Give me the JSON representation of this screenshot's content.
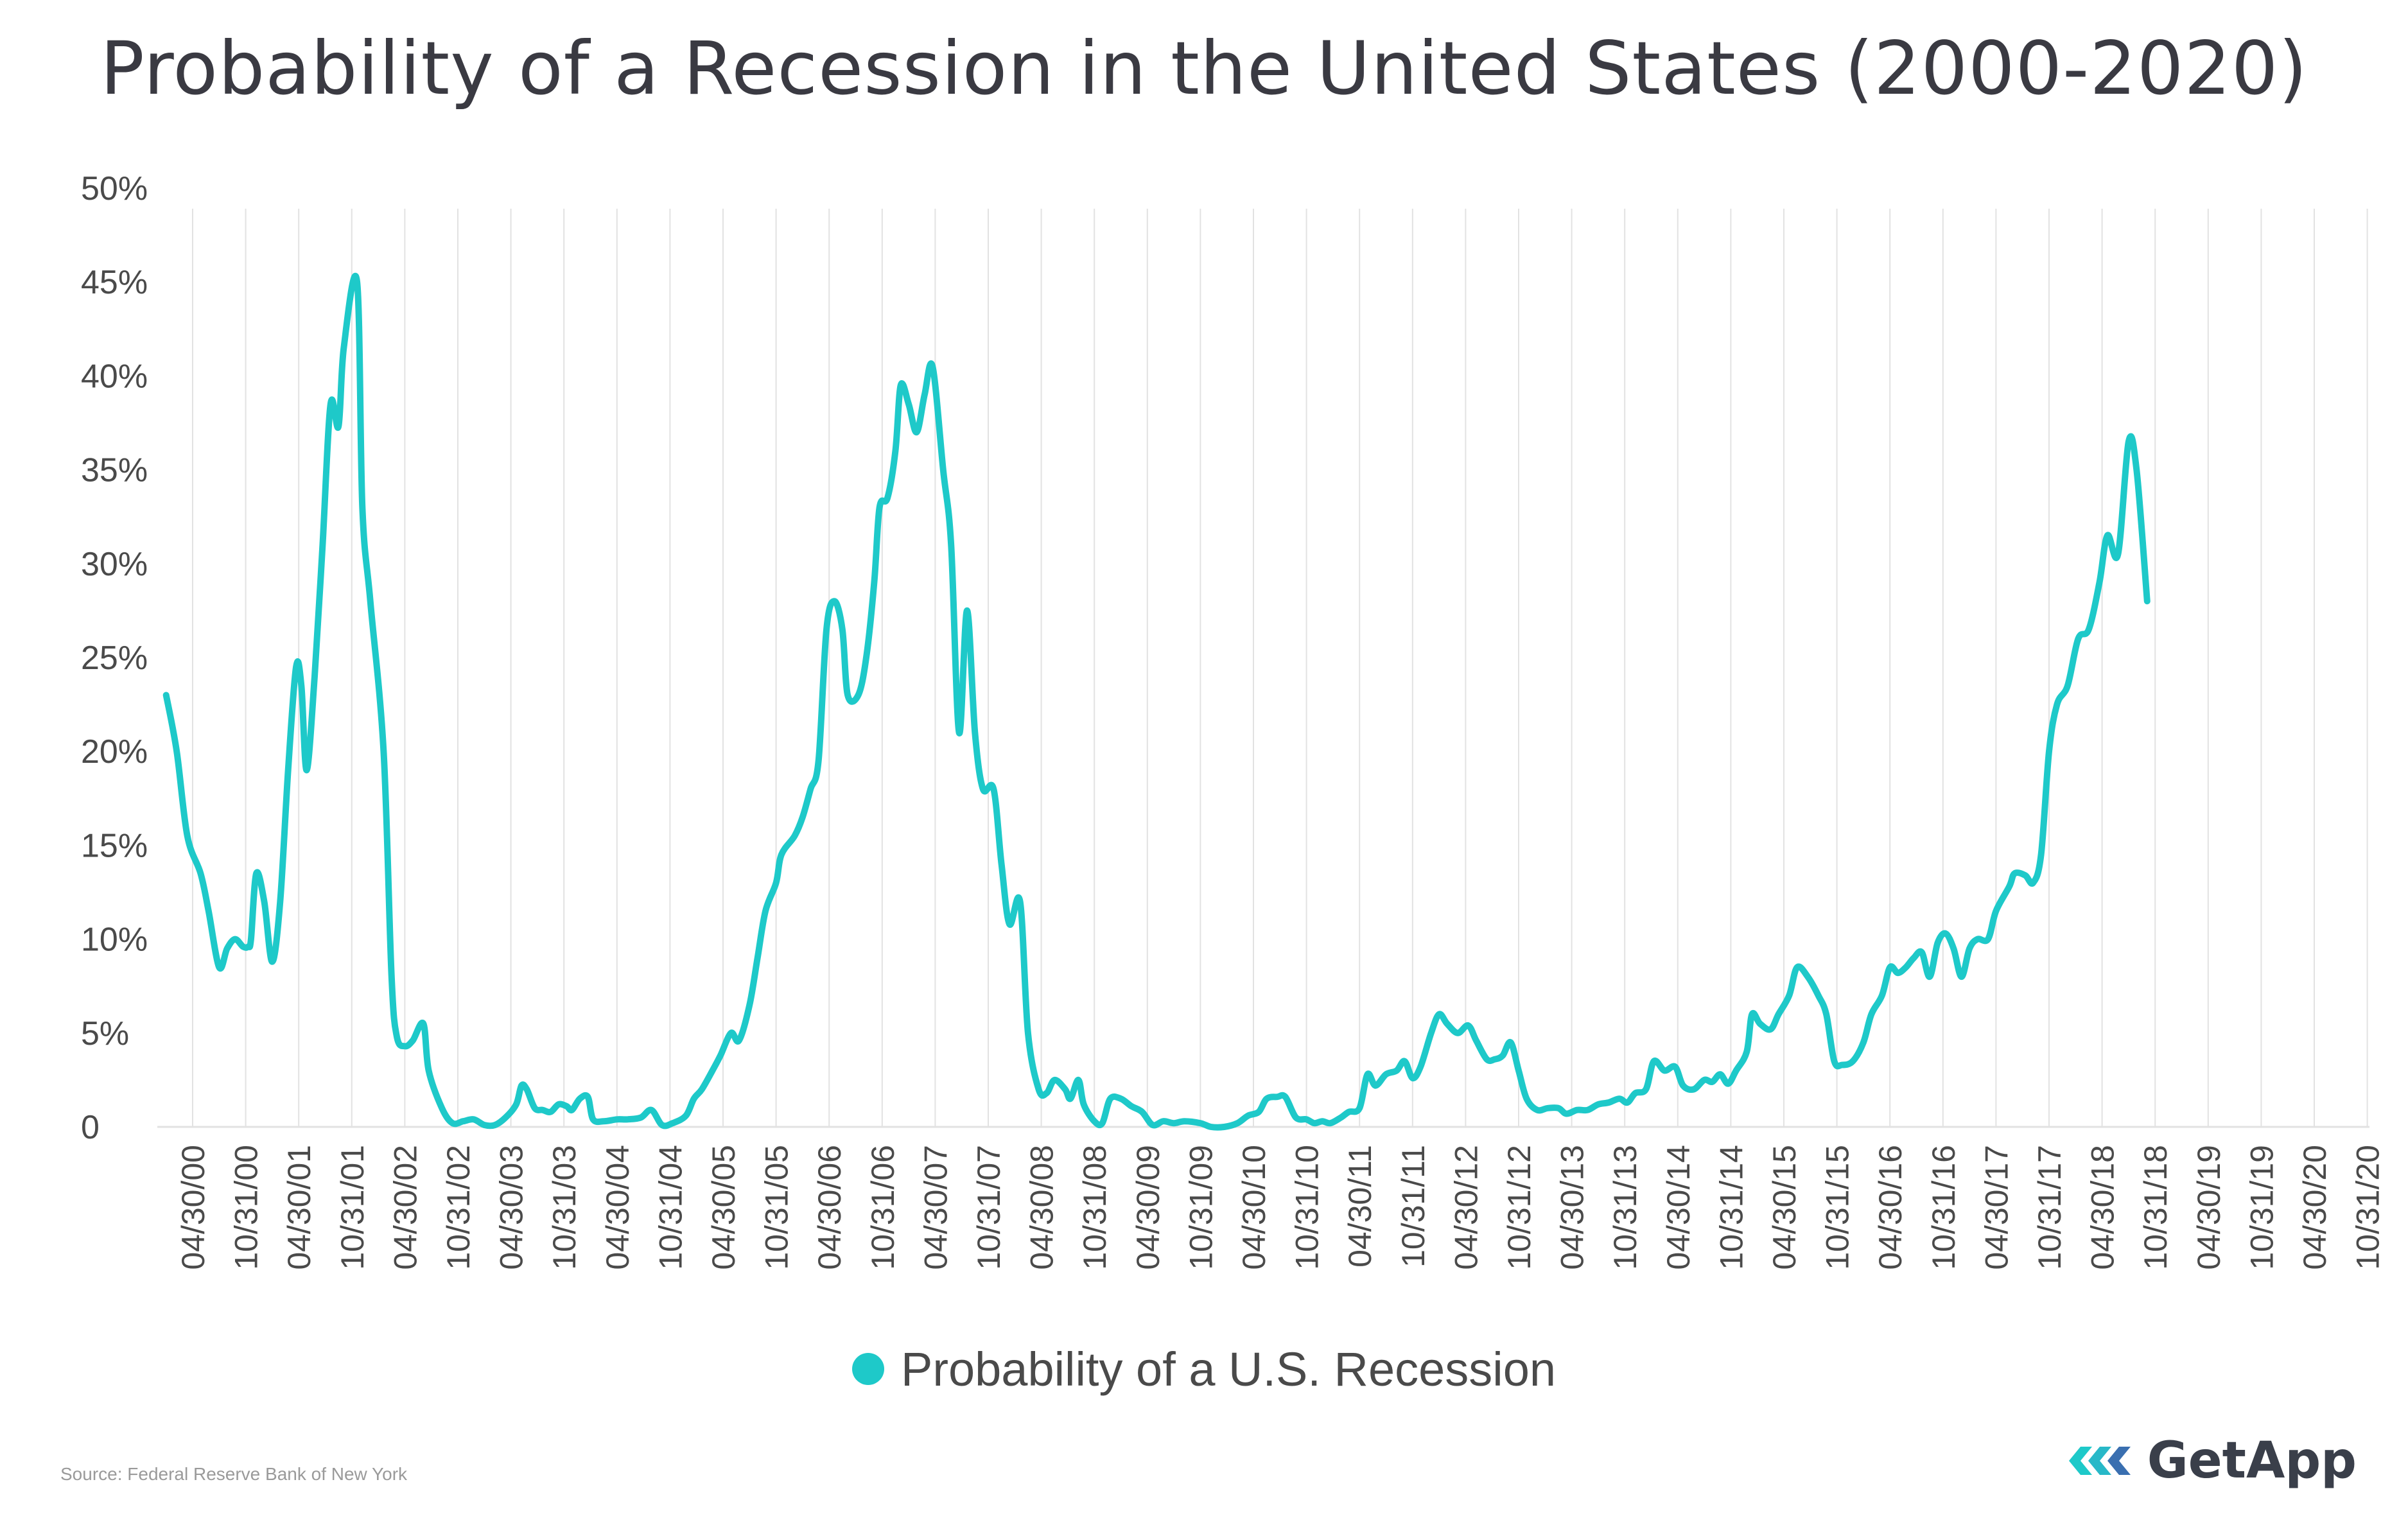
{
  "chart_data": {
    "type": "line",
    "title": "Probability of a Recession in the United States (2000-2020)",
    "xlabel": "",
    "ylabel": "",
    "ylim": [
      0,
      50
    ],
    "yticks": [
      0,
      5,
      10,
      15,
      20,
      25,
      30,
      35,
      40,
      45,
      50
    ],
    "ytick_labels": [
      "0",
      "5%",
      "10%",
      "15%",
      "20%",
      "25%",
      "30%",
      "35%",
      "40%",
      "45%",
      "50%"
    ],
    "x_tick_labels": [
      "04/30/00",
      "10/31/00",
      "04/30/01",
      "10/31/01",
      "04/30/02",
      "10/31/02",
      "04/30/03",
      "10/31/03",
      "04/30/04",
      "10/31/04",
      "04/30/05",
      "10/31/05",
      "04/30/06",
      "10/31/06",
      "04/30/07",
      "10/31/07",
      "04/30/08",
      "10/31/08",
      "04/30/09",
      "10/31/09",
      "04/30/10",
      "10/31/10",
      "04/30/11",
      "10/31/11",
      "04/30/12",
      "10/31/12",
      "04/30/13",
      "10/31/13",
      "04/30/14",
      "10/31/14",
      "04/30/15",
      "10/31/15",
      "04/30/16",
      "10/31/16",
      "04/30/17",
      "10/31/17",
      "04/30/18",
      "10/31/18",
      "04/30/19",
      "10/31/19",
      "04/30/20",
      "10/31/20"
    ],
    "x_range": [
      -0.5,
      41
    ],
    "grid": "vertical",
    "legend": "bottom-center",
    "series": [
      {
        "name": "Probability of a U.S. Recession",
        "color": "#1ec9c9",
        "points": [
          [
            -0.5,
            23.0
          ],
          [
            -0.3,
            20.0
          ],
          [
            -0.1,
            15.5
          ],
          [
            0.15,
            13.5
          ],
          [
            0.3,
            11.5
          ],
          [
            0.5,
            8.5
          ],
          [
            0.65,
            9.5
          ],
          [
            0.8,
            10.0
          ],
          [
            0.95,
            9.6
          ],
          [
            1.05,
            9.6
          ],
          [
            1.1,
            10.0
          ],
          [
            1.2,
            13.5
          ],
          [
            1.35,
            12.0
          ],
          [
            1.5,
            8.8
          ],
          [
            1.65,
            12.0
          ],
          [
            1.8,
            19.0
          ],
          [
            1.95,
            24.5
          ],
          [
            2.05,
            23.5
          ],
          [
            2.15,
            19.0
          ],
          [
            2.3,
            24.0
          ],
          [
            2.45,
            31.0
          ],
          [
            2.6,
            38.5
          ],
          [
            2.75,
            37.3
          ],
          [
            2.85,
            41.5
          ],
          [
            3.1,
            45.0
          ],
          [
            3.2,
            33.0
          ],
          [
            3.35,
            28.0
          ],
          [
            3.6,
            20.0
          ],
          [
            3.75,
            8.0
          ],
          [
            3.85,
            4.8
          ],
          [
            4.0,
            4.3
          ],
          [
            4.15,
            4.6
          ],
          [
            4.35,
            5.5
          ],
          [
            4.45,
            3.0
          ],
          [
            4.7,
            1.0
          ],
          [
            4.9,
            0.2
          ],
          [
            5.1,
            0.3
          ],
          [
            5.3,
            0.4
          ],
          [
            5.5,
            0.1
          ],
          [
            5.7,
            0.1
          ],
          [
            5.9,
            0.5
          ],
          [
            6.1,
            1.2
          ],
          [
            6.2,
            2.2
          ],
          [
            6.3,
            2.0
          ],
          [
            6.45,
            1.0
          ],
          [
            6.6,
            0.9
          ],
          [
            6.75,
            0.8
          ],
          [
            6.9,
            1.2
          ],
          [
            7.05,
            1.1
          ],
          [
            7.15,
            0.9
          ],
          [
            7.3,
            1.5
          ],
          [
            7.45,
            1.6
          ],
          [
            7.55,
            0.4
          ],
          [
            7.75,
            0.3
          ],
          [
            8.0,
            0.4
          ],
          [
            8.2,
            0.4
          ],
          [
            8.45,
            0.5
          ],
          [
            8.65,
            0.9
          ],
          [
            8.85,
            0.1
          ],
          [
            9.05,
            0.2
          ],
          [
            9.3,
            0.6
          ],
          [
            9.45,
            1.5
          ],
          [
            9.6,
            2.0
          ],
          [
            9.8,
            3.0
          ],
          [
            9.95,
            3.8
          ],
          [
            10.15,
            5.0
          ],
          [
            10.3,
            4.6
          ],
          [
            10.5,
            6.5
          ],
          [
            10.65,
            9.0
          ],
          [
            10.8,
            11.5
          ],
          [
            11.0,
            13.0
          ],
          [
            11.1,
            14.5
          ],
          [
            11.35,
            15.5
          ],
          [
            11.5,
            16.5
          ],
          [
            11.65,
            18.0
          ],
          [
            11.8,
            19.5
          ],
          [
            11.95,
            26.5
          ],
          [
            12.1,
            28.0
          ],
          [
            12.25,
            26.5
          ],
          [
            12.35,
            23.0
          ],
          [
            12.55,
            23.0
          ],
          [
            12.7,
            25.0
          ],
          [
            12.85,
            29.0
          ],
          [
            12.95,
            33.0
          ],
          [
            13.1,
            33.5
          ],
          [
            13.25,
            36.0
          ],
          [
            13.35,
            39.5
          ],
          [
            13.5,
            38.5
          ],
          [
            13.65,
            37.0
          ],
          [
            13.8,
            39.0
          ],
          [
            13.95,
            40.5
          ],
          [
            14.15,
            35.0
          ],
          [
            14.3,
            31.0
          ],
          [
            14.45,
            21.0
          ],
          [
            14.6,
            27.5
          ],
          [
            14.75,
            21.0
          ],
          [
            14.9,
            18.0
          ],
          [
            15.1,
            18.0
          ],
          [
            15.25,
            14.0
          ],
          [
            15.4,
            10.8
          ],
          [
            15.6,
            12.0
          ],
          [
            15.75,
            5.0
          ],
          [
            15.95,
            2.0
          ],
          [
            16.1,
            1.8
          ],
          [
            16.25,
            2.5
          ],
          [
            16.45,
            2.0
          ],
          [
            16.55,
            1.5
          ],
          [
            16.7,
            2.5
          ],
          [
            16.8,
            1.2
          ],
          [
            17.0,
            0.3
          ],
          [
            17.15,
            0.2
          ],
          [
            17.3,
            1.5
          ],
          [
            17.5,
            1.5
          ],
          [
            17.7,
            1.1
          ],
          [
            17.9,
            0.8
          ],
          [
            18.1,
            0.1
          ],
          [
            18.3,
            0.3
          ],
          [
            18.5,
            0.2
          ],
          [
            18.7,
            0.3
          ],
          [
            19.0,
            0.2
          ],
          [
            19.2,
            0.0
          ],
          [
            19.45,
            0.0
          ],
          [
            19.7,
            0.2
          ],
          [
            19.9,
            0.6
          ],
          [
            20.1,
            0.8
          ],
          [
            20.25,
            1.5
          ],
          [
            20.45,
            1.6
          ],
          [
            20.6,
            1.6
          ],
          [
            20.8,
            0.5
          ],
          [
            21.0,
            0.4
          ],
          [
            21.15,
            0.2
          ],
          [
            21.3,
            0.3
          ],
          [
            21.45,
            0.2
          ],
          [
            21.65,
            0.5
          ],
          [
            21.8,
            0.8
          ],
          [
            22.0,
            1.0
          ],
          [
            22.15,
            2.8
          ],
          [
            22.3,
            2.2
          ],
          [
            22.5,
            2.8
          ],
          [
            22.7,
            3.0
          ],
          [
            22.85,
            3.5
          ],
          [
            23.0,
            2.6
          ],
          [
            23.15,
            3.2
          ],
          [
            23.35,
            5.0
          ],
          [
            23.5,
            6.0
          ],
          [
            23.65,
            5.5
          ],
          [
            23.85,
            5.0
          ],
          [
            24.05,
            5.4
          ],
          [
            24.2,
            4.6
          ],
          [
            24.4,
            3.6
          ],
          [
            24.55,
            3.6
          ],
          [
            24.7,
            3.8
          ],
          [
            24.85,
            4.5
          ],
          [
            25.0,
            3.0
          ],
          [
            25.15,
            1.5
          ],
          [
            25.35,
            0.9
          ],
          [
            25.55,
            1.0
          ],
          [
            25.75,
            1.0
          ],
          [
            25.9,
            0.7
          ],
          [
            26.1,
            0.9
          ],
          [
            26.3,
            0.9
          ],
          [
            26.5,
            1.2
          ],
          [
            26.7,
            1.3
          ],
          [
            26.9,
            1.5
          ],
          [
            27.05,
            1.3
          ],
          [
            27.2,
            1.8
          ],
          [
            27.4,
            2.0
          ],
          [
            27.55,
            3.5
          ],
          [
            27.75,
            3.0
          ],
          [
            27.95,
            3.2
          ],
          [
            28.1,
            2.2
          ],
          [
            28.3,
            2.0
          ],
          [
            28.5,
            2.5
          ],
          [
            28.65,
            2.4
          ],
          [
            28.8,
            2.8
          ],
          [
            28.95,
            2.3
          ],
          [
            29.1,
            3.0
          ],
          [
            29.3,
            4.0
          ],
          [
            29.4,
            6.0
          ],
          [
            29.55,
            5.5
          ],
          [
            29.75,
            5.2
          ],
          [
            29.9,
            6.0
          ],
          [
            30.1,
            7.0
          ],
          [
            30.25,
            8.5
          ],
          [
            30.45,
            8.0
          ],
          [
            30.65,
            7.0
          ],
          [
            30.8,
            6.0
          ],
          [
            30.95,
            3.5
          ],
          [
            31.1,
            3.3
          ],
          [
            31.3,
            3.5
          ],
          [
            31.5,
            4.5
          ],
          [
            31.65,
            6.0
          ],
          [
            31.85,
            7.0
          ],
          [
            32.0,
            8.5
          ],
          [
            32.15,
            8.2
          ],
          [
            32.3,
            8.5
          ],
          [
            32.45,
            9.0
          ],
          [
            32.6,
            9.3
          ],
          [
            32.75,
            8.0
          ],
          [
            32.9,
            9.8
          ],
          [
            33.05,
            10.3
          ],
          [
            33.2,
            9.5
          ],
          [
            33.35,
            8.0
          ],
          [
            33.5,
            9.5
          ],
          [
            33.65,
            10.0
          ],
          [
            33.85,
            10.0
          ],
          [
            34.0,
            11.5
          ],
          [
            34.25,
            12.8
          ],
          [
            34.35,
            13.5
          ],
          [
            34.55,
            13.4
          ],
          [
            34.7,
            13.0
          ],
          [
            34.85,
            14.5
          ],
          [
            35.0,
            20.0
          ],
          [
            35.15,
            22.5
          ],
          [
            35.35,
            23.5
          ],
          [
            35.55,
            26.0
          ],
          [
            35.75,
            26.5
          ],
          [
            35.95,
            29.0
          ],
          [
            36.1,
            31.5
          ],
          [
            36.3,
            30.5
          ],
          [
            36.5,
            36.5
          ],
          [
            36.65,
            35.0
          ],
          [
            36.85,
            28.0
          ]
        ]
      }
    ]
  },
  "legend": {
    "label": "Probability of a U.S. Recession",
    "color": "#1ec9c9"
  },
  "source": "Source: Federal Reserve Bank of New York",
  "brand": {
    "name": "GetApp",
    "icon": "getapp-chevron-icon"
  },
  "colors": {
    "line": "#1ec9c9",
    "grid": "#e2e2e2",
    "axis_text": "#4a4a4a",
    "title": "#3a3a42"
  }
}
